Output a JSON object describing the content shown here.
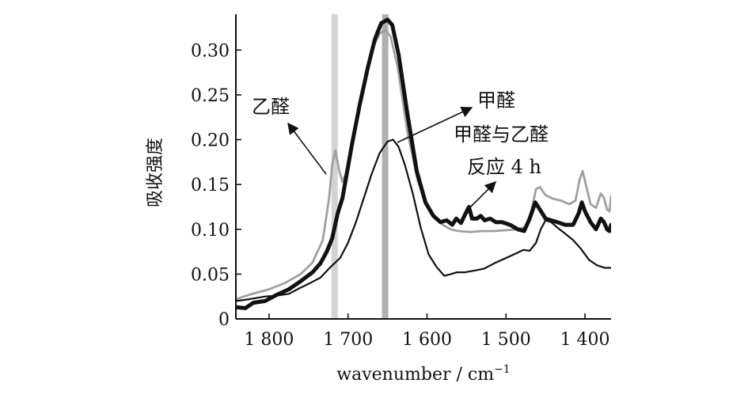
{
  "chart_data": {
    "type": "line",
    "xlabel_main": "wavenumber / cm",
    "xlabel_sup": "−1",
    "ylabel": "吸收强度",
    "xlim": [
      1842,
      1367
    ],
    "ylim": [
      0,
      0.34
    ],
    "x_ticks": [
      1800,
      1700,
      1600,
      1500,
      1400
    ],
    "x_tick_labels": [
      "1 800",
      "1 700",
      "1 600",
      "1 500",
      "1 400"
    ],
    "y_ticks": [
      0,
      0.05,
      0.1,
      0.15,
      0.2,
      0.25,
      0.3
    ],
    "y_tick_labels": [
      "0",
      "0.05",
      "0.10",
      "0.15",
      "0.20",
      "0.25",
      "0.30"
    ],
    "bands": [
      {
        "x": 1717,
        "color": "#d3d3d3"
      },
      {
        "x": 1653,
        "color": "#b0b0b0"
      }
    ],
    "annotations": [
      {
        "id": "acetaldehyde",
        "text": "乙醛"
      },
      {
        "id": "formaldehyde",
        "text": "甲醛"
      },
      {
        "id": "reaction1",
        "text": "甲醛与乙醛"
      },
      {
        "id": "reaction2",
        "text": "反应 4 h"
      }
    ],
    "series": [
      {
        "id": "acetaldehyde",
        "color": "#a0a0a0",
        "width": 2.8,
        "points": [
          [
            1842,
            0.022
          ],
          [
            1825,
            0.027
          ],
          [
            1800,
            0.033
          ],
          [
            1780,
            0.04
          ],
          [
            1760,
            0.05
          ],
          [
            1745,
            0.063
          ],
          [
            1732,
            0.088
          ],
          [
            1724,
            0.135
          ],
          [
            1720,
            0.172
          ],
          [
            1716,
            0.188
          ],
          [
            1711,
            0.165
          ],
          [
            1707,
            0.153
          ],
          [
            1703,
            0.162
          ],
          [
            1697,
            0.185
          ],
          [
            1690,
            0.22
          ],
          [
            1680,
            0.262
          ],
          [
            1670,
            0.3
          ],
          [
            1660,
            0.318
          ],
          [
            1653,
            0.323
          ],
          [
            1646,
            0.315
          ],
          [
            1637,
            0.28
          ],
          [
            1625,
            0.21
          ],
          [
            1612,
            0.155
          ],
          [
            1600,
            0.125
          ],
          [
            1590,
            0.112
          ],
          [
            1580,
            0.105
          ],
          [
            1570,
            0.1
          ],
          [
            1560,
            0.098
          ],
          [
            1545,
            0.097
          ],
          [
            1530,
            0.098
          ],
          [
            1515,
            0.098
          ],
          [
            1500,
            0.099
          ],
          [
            1485,
            0.1
          ],
          [
            1475,
            0.103
          ],
          [
            1468,
            0.12
          ],
          [
            1462,
            0.145
          ],
          [
            1457,
            0.147
          ],
          [
            1450,
            0.138
          ],
          [
            1440,
            0.134
          ],
          [
            1430,
            0.132
          ],
          [
            1420,
            0.128
          ],
          [
            1412,
            0.132
          ],
          [
            1407,
            0.155
          ],
          [
            1403,
            0.165
          ],
          [
            1399,
            0.15
          ],
          [
            1393,
            0.128
          ],
          [
            1386,
            0.124
          ],
          [
            1380,
            0.14
          ],
          [
            1376,
            0.135
          ],
          [
            1372,
            0.122
          ],
          [
            1369,
            0.12
          ],
          [
            1367,
            0.137
          ]
        ]
      },
      {
        "id": "reaction",
        "color": "#111111",
        "width": 5,
        "points": [
          [
            1842,
            0.013
          ],
          [
            1830,
            0.012
          ],
          [
            1820,
            0.018
          ],
          [
            1805,
            0.02
          ],
          [
            1790,
            0.027
          ],
          [
            1775,
            0.033
          ],
          [
            1760,
            0.042
          ],
          [
            1745,
            0.052
          ],
          [
            1735,
            0.062
          ],
          [
            1727,
            0.075
          ],
          [
            1720,
            0.09
          ],
          [
            1713,
            0.118
          ],
          [
            1707,
            0.135
          ],
          [
            1702,
            0.16
          ],
          [
            1695,
            0.195
          ],
          [
            1685,
            0.24
          ],
          [
            1675,
            0.28
          ],
          [
            1666,
            0.312
          ],
          [
            1658,
            0.33
          ],
          [
            1650,
            0.334
          ],
          [
            1644,
            0.328
          ],
          [
            1636,
            0.295
          ],
          [
            1625,
            0.23
          ],
          [
            1613,
            0.165
          ],
          [
            1602,
            0.13
          ],
          [
            1592,
            0.115
          ],
          [
            1583,
            0.108
          ],
          [
            1575,
            0.11
          ],
          [
            1568,
            0.105
          ],
          [
            1563,
            0.112
          ],
          [
            1557,
            0.107
          ],
          [
            1551,
            0.118
          ],
          [
            1547,
            0.125
          ],
          [
            1543,
            0.112
          ],
          [
            1537,
            0.112
          ],
          [
            1532,
            0.115
          ],
          [
            1527,
            0.11
          ],
          [
            1520,
            0.112
          ],
          [
            1513,
            0.108
          ],
          [
            1505,
            0.108
          ],
          [
            1495,
            0.105
          ],
          [
            1485,
            0.1
          ],
          [
            1477,
            0.098
          ],
          [
            1470,
            0.112
          ],
          [
            1463,
            0.13
          ],
          [
            1457,
            0.122
          ],
          [
            1450,
            0.112
          ],
          [
            1443,
            0.11
          ],
          [
            1435,
            0.108
          ],
          [
            1425,
            0.105
          ],
          [
            1415,
            0.105
          ],
          [
            1408,
            0.118
          ],
          [
            1404,
            0.13
          ],
          [
            1400,
            0.12
          ],
          [
            1393,
            0.108
          ],
          [
            1386,
            0.1
          ],
          [
            1380,
            0.112
          ],
          [
            1376,
            0.108
          ],
          [
            1372,
            0.1
          ],
          [
            1369,
            0.098
          ],
          [
            1367,
            0.105
          ]
        ]
      },
      {
        "id": "formaldehyde",
        "color": "#111111",
        "width": 2.2,
        "points": [
          [
            1842,
            0.02
          ],
          [
            1825,
            0.022
          ],
          [
            1805,
            0.025
          ],
          [
            1790,
            0.026
          ],
          [
            1775,
            0.028
          ],
          [
            1762,
            0.034
          ],
          [
            1748,
            0.04
          ],
          [
            1735,
            0.046
          ],
          [
            1722,
            0.058
          ],
          [
            1710,
            0.068
          ],
          [
            1700,
            0.085
          ],
          [
            1690,
            0.108
          ],
          [
            1680,
            0.135
          ],
          [
            1670,
            0.162
          ],
          [
            1660,
            0.185
          ],
          [
            1650,
            0.198
          ],
          [
            1643,
            0.2
          ],
          [
            1636,
            0.192
          ],
          [
            1628,
            0.172
          ],
          [
            1618,
            0.14
          ],
          [
            1608,
            0.102
          ],
          [
            1598,
            0.072
          ],
          [
            1588,
            0.058
          ],
          [
            1578,
            0.048
          ],
          [
            1570,
            0.05
          ],
          [
            1562,
            0.052
          ],
          [
            1552,
            0.052
          ],
          [
            1540,
            0.054
          ],
          [
            1528,
            0.056
          ],
          [
            1515,
            0.062
          ],
          [
            1505,
            0.066
          ],
          [
            1495,
            0.07
          ],
          [
            1485,
            0.074
          ],
          [
            1478,
            0.077
          ],
          [
            1470,
            0.076
          ],
          [
            1462,
            0.085
          ],
          [
            1456,
            0.1
          ],
          [
            1450,
            0.11
          ],
          [
            1443,
            0.108
          ],
          [
            1435,
            0.102
          ],
          [
            1425,
            0.095
          ],
          [
            1415,
            0.088
          ],
          [
            1405,
            0.078
          ],
          [
            1395,
            0.066
          ],
          [
            1385,
            0.06
          ],
          [
            1375,
            0.057
          ],
          [
            1367,
            0.057
          ]
        ]
      }
    ]
  }
}
